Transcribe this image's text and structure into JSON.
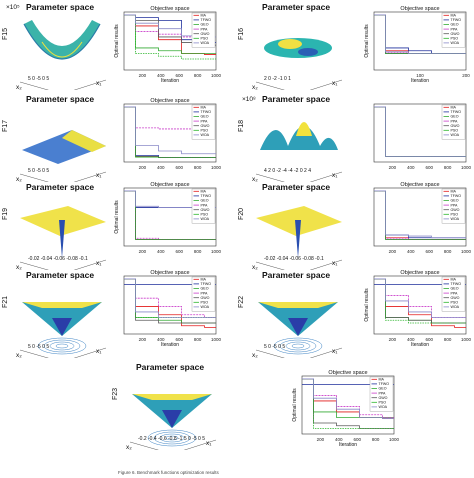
{
  "page": {
    "caption": "Figure 6. Benchmark functions optimization results"
  },
  "legend_items": [
    "MA",
    "TFWO",
    "GEO",
    "PPA",
    "GWO",
    "PSO",
    "WOA"
  ],
  "colors": {
    "MA": "#e21a1a",
    "TFWO": "#1e2f9c",
    "GEO": "#33aa33",
    "PPA": "#c93cc9",
    "GWO": "#5a5a5a",
    "PSO": "#2bb52b",
    "WOA": "#8a8ac8"
  },
  "panels": [
    {
      "fn": "F15",
      "title": "Parameter space",
      "x1": "x₁",
      "x2": "x₂",
      "ticks": [
        "5",
        "0",
        "-5",
        "0",
        "5"
      ],
      "exp": "×10⁵",
      "obj_title": "Objective space",
      "xlabel": "Iteration",
      "ylabel": "Optimal results",
      "xticks": [
        "200",
        "400",
        "600",
        "800",
        "1000"
      ]
    },
    {
      "fn": "F16",
      "title": "Parameter space",
      "x1": "x₁",
      "x2": "x₂",
      "ticks": [
        "2",
        "0",
        "-2",
        "-1",
        "0",
        "1"
      ],
      "exp": "",
      "obj_title": "Objective space",
      "xlabel": "Iteration",
      "ylabel": "Optimal results",
      "xticks": [
        "100",
        "200"
      ]
    },
    {
      "fn": "F17",
      "title": "Parameter space",
      "x1": "x₁",
      "x2": "x₂",
      "ticks": [
        "5",
        "0",
        "-5",
        "0",
        "5"
      ],
      "exp": "",
      "obj_title": "Objective space",
      "xlabel": "",
      "ylabel": "",
      "xticks": [
        "200",
        "400",
        "600",
        "800",
        "1000"
      ]
    },
    {
      "fn": "F18",
      "title": "Parameter space",
      "x1": "x₁",
      "x2": "x₂",
      "ticks": [
        "4",
        "2",
        "0",
        "-2",
        "-4",
        "-4",
        "-2",
        "0",
        "2",
        "4"
      ],
      "exp": "×10⁸",
      "obj_title": "",
      "xlabel": "",
      "ylabel": "",
      "xticks": [
        "200",
        "400",
        "600",
        "800",
        "1000"
      ]
    },
    {
      "fn": "F19",
      "title": "Parameter space",
      "x1": "x₁",
      "x2": "x₂",
      "ticks": [
        "-0.02",
        "-0.04",
        "-0.06",
        "-0.08",
        "-0.1"
      ],
      "exp": "",
      "obj_title": "Objective space",
      "xlabel": "",
      "ylabel": "Optimal results",
      "xticks": [
        "200",
        "400",
        "600",
        "800",
        "1000"
      ]
    },
    {
      "fn": "F20",
      "title": "Parameter space",
      "x1": "x₁",
      "x2": "x₂",
      "ticks": [
        "-0.02",
        "-0.04",
        "-0.06",
        "-0.08",
        "-0.1"
      ],
      "exp": "",
      "obj_title": "Objective space",
      "xlabel": "",
      "ylabel": "",
      "xticks": [
        "200",
        "400",
        "600",
        "800",
        "1000"
      ]
    },
    {
      "fn": "F21",
      "title": "Parameter space",
      "x1": "x₁",
      "x2": "x₂",
      "ticks": [
        "5",
        "0",
        "-5",
        "0",
        "5"
      ],
      "exp": "",
      "obj_title": "Objective space",
      "xlabel": "Iteration",
      "ylabel": "",
      "xticks": [
        "200",
        "400",
        "600",
        "800",
        "1000"
      ]
    },
    {
      "fn": "F22",
      "title": "Parameter space",
      "x1": "x₁",
      "x2": "x₂",
      "ticks": [
        "5",
        "0",
        "-5",
        "0",
        "5"
      ],
      "exp": "",
      "obj_title": "Objective space",
      "xlabel": "Iteration",
      "ylabel": "Optimal results",
      "xticks": [
        "200",
        "400",
        "600",
        "800",
        "1000"
      ]
    },
    {
      "fn": "F23",
      "title": "Parameter space",
      "x1": "x₁",
      "x2": "x₂",
      "ticks": [
        "-0.2",
        "-0.4",
        "-0.6",
        "-0.8",
        "-1",
        "5",
        "0",
        "-5",
        "0",
        "5"
      ],
      "exp": "",
      "obj_title": "Objective space",
      "xlabel": "Iteration",
      "ylabel": "Optimal results",
      "xticks": [
        "200",
        "400",
        "600",
        "800",
        "1000"
      ]
    }
  ],
  "chart_data": [
    {
      "type": "line",
      "title": "Objective space",
      "xlabel": "Iteration",
      "ylabel": "Optimal results",
      "xlim": [
        0,
        1000
      ],
      "series": [
        {
          "name": "MA",
          "values": [
            1.0,
            0.8,
            0.55,
            0.3,
            0.28
          ]
        },
        {
          "name": "TFWO",
          "values": [
            1.0,
            0.95,
            0.9,
            0.55,
            0.5
          ]
        },
        {
          "name": "GEO",
          "values": [
            1.0,
            0.4,
            0.35,
            0.3,
            0.3
          ]
        },
        {
          "name": "PPA",
          "values": [
            1.0,
            0.7,
            0.65,
            0.6,
            0.6
          ]
        },
        {
          "name": "GWO",
          "values": [
            1.0,
            0.9,
            0.6,
            0.5,
            0.45
          ]
        },
        {
          "name": "PSO",
          "values": [
            1.0,
            0.3,
            0.25,
            0.2,
            0.2
          ]
        },
        {
          "name": "WOA",
          "values": [
            1.0,
            0.85,
            0.75,
            0.62,
            0.6
          ]
        }
      ]
    },
    {
      "type": "line",
      "title": "Objective space",
      "xlabel": "Iteration",
      "ylabel": "Optimal results",
      "xlim": [
        0,
        200
      ],
      "series": [
        {
          "name": "MA",
          "values": [
            1.0,
            0.35,
            0.3,
            0.3,
            0.3
          ]
        },
        {
          "name": "TFWO",
          "values": [
            1.0,
            0.4,
            0.35,
            0.3,
            0.3
          ]
        },
        {
          "name": "GEO",
          "values": [
            1.0,
            0.3,
            0.3,
            0.3,
            0.3
          ]
        },
        {
          "name": "PPA",
          "values": [
            1.0,
            0.32,
            0.3,
            0.3,
            0.3
          ]
        },
        {
          "name": "GWO",
          "values": [
            1.0,
            0.3,
            0.3,
            0.3,
            0.3
          ]
        },
        {
          "name": "PSO",
          "values": [
            1.0,
            0.3,
            0.3,
            0.3,
            0.3
          ]
        },
        {
          "name": "WOA",
          "values": [
            1.0,
            0.33,
            0.3,
            0.3,
            0.3
          ]
        }
      ]
    },
    {
      "type": "line",
      "title": "Objective space",
      "xlim": [
        0,
        1000
      ],
      "series": [
        {
          "name": "MA",
          "values": [
            1.0,
            0.1,
            0.08,
            0.08,
            0.08
          ]
        },
        {
          "name": "TFWO",
          "values": [
            1.0,
            0.12,
            0.08,
            0.08,
            0.08
          ]
        },
        {
          "name": "GEO",
          "values": [
            1.0,
            0.09,
            0.08,
            0.08,
            0.08
          ]
        },
        {
          "name": "PPA",
          "values": [
            1.0,
            0.62,
            0.6,
            0.6,
            0.6
          ]
        },
        {
          "name": "GWO",
          "values": [
            1.0,
            0.1,
            0.08,
            0.08,
            0.08
          ]
        },
        {
          "name": "PSO",
          "values": [
            1.0,
            0.09,
            0.08,
            0.08,
            0.08
          ]
        },
        {
          "name": "WOA",
          "values": [
            1.0,
            0.3,
            0.2,
            0.15,
            0.15
          ]
        }
      ]
    },
    {
      "type": "line",
      "xlim": [
        0,
        1000
      ],
      "series": [
        {
          "name": "MA",
          "values": [
            1.0,
            0.1,
            0.1,
            0.1,
            0.1
          ]
        },
        {
          "name": "TFWO",
          "values": [
            1.0,
            0.1,
            0.1,
            0.1,
            0.1
          ]
        },
        {
          "name": "GEO",
          "values": [
            1.0,
            0.1,
            0.1,
            0.1,
            0.1
          ]
        },
        {
          "name": "PPA",
          "values": [
            1.0,
            0.1,
            0.1,
            0.1,
            0.1
          ]
        },
        {
          "name": "GWO",
          "values": [
            1.0,
            0.1,
            0.1,
            0.1,
            0.1
          ]
        },
        {
          "name": "PSO",
          "values": [
            1.0,
            0.1,
            0.1,
            0.1,
            0.1
          ]
        },
        {
          "name": "WOA",
          "values": [
            1.0,
            0.1,
            0.1,
            0.1,
            0.1
          ]
        }
      ]
    },
    {
      "type": "line",
      "title": "Objective space",
      "ylabel": "Optimal results",
      "xlim": [
        0,
        1000
      ],
      "series": [
        {
          "name": "MA",
          "values": [
            1.0,
            0.12,
            0.12,
            0.12,
            0.12
          ]
        },
        {
          "name": "TFWO",
          "values": [
            1.0,
            0.7,
            0.7,
            0.7,
            0.7
          ]
        },
        {
          "name": "GEO",
          "values": [
            1.0,
            0.12,
            0.12,
            0.12,
            0.12
          ]
        },
        {
          "name": "PPA",
          "values": [
            1.0,
            0.14,
            0.12,
            0.12,
            0.12
          ]
        },
        {
          "name": "GWO",
          "values": [
            1.0,
            0.12,
            0.12,
            0.12,
            0.12
          ]
        },
        {
          "name": "PSO",
          "values": [
            1.0,
            0.12,
            0.12,
            0.12,
            0.12
          ]
        },
        {
          "name": "WOA",
          "values": [
            1.0,
            0.72,
            0.7,
            0.7,
            0.7
          ]
        }
      ]
    },
    {
      "type": "line",
      "title": "Objective space",
      "xlim": [
        0,
        1000
      ],
      "series": [
        {
          "name": "MA",
          "values": [
            1.0,
            0.15,
            0.12,
            0.12,
            0.12
          ]
        },
        {
          "name": "TFWO",
          "values": [
            1.0,
            0.2,
            0.15,
            0.15,
            0.15
          ]
        },
        {
          "name": "GEO",
          "values": [
            1.0,
            0.12,
            0.12,
            0.12,
            0.12
          ]
        },
        {
          "name": "PPA",
          "values": [
            1.0,
            0.14,
            0.12,
            0.12,
            0.12
          ]
        },
        {
          "name": "GWO",
          "values": [
            1.0,
            0.12,
            0.12,
            0.12,
            0.12
          ]
        },
        {
          "name": "PSO",
          "values": [
            1.0,
            0.12,
            0.12,
            0.12,
            0.12
          ]
        },
        {
          "name": "WOA",
          "values": [
            1.0,
            0.2,
            0.18,
            0.15,
            0.15
          ]
        }
      ]
    },
    {
      "type": "line",
      "title": "Objective space",
      "xlabel": "Iteration",
      "xlim": [
        0,
        1000
      ],
      "series": [
        {
          "name": "MA",
          "values": [
            1.0,
            0.5,
            0.35,
            0.15,
            0.12
          ]
        },
        {
          "name": "TFWO",
          "values": [
            0.9,
            0.9,
            0.9,
            0.9,
            0.9
          ]
        },
        {
          "name": "GEO",
          "values": [
            1.0,
            0.3,
            0.25,
            0.2,
            0.2
          ]
        },
        {
          "name": "PPA",
          "values": [
            1.0,
            0.65,
            0.5,
            0.35,
            0.3
          ]
        },
        {
          "name": "GWO",
          "values": [
            1.0,
            0.25,
            0.2,
            0.2,
            0.2
          ]
        },
        {
          "name": "PSO",
          "values": [
            1.0,
            0.3,
            0.3,
            0.3,
            0.3
          ]
        },
        {
          "name": "WOA",
          "values": [
            1.0,
            0.4,
            0.3,
            0.3,
            0.3
          ]
        }
      ]
    },
    {
      "type": "line",
      "title": "Objective space",
      "xlabel": "Iteration",
      "ylabel": "Optimal results",
      "xlim": [
        0,
        1000
      ],
      "series": [
        {
          "name": "MA",
          "values": [
            1.0,
            0.5,
            0.35,
            0.15,
            0.12
          ]
        },
        {
          "name": "TFWO",
          "values": [
            0.9,
            0.9,
            0.9,
            0.9,
            0.9
          ]
        },
        {
          "name": "GEO",
          "values": [
            1.0,
            0.3,
            0.25,
            0.2,
            0.2
          ]
        },
        {
          "name": "PPA",
          "values": [
            1.0,
            0.7,
            0.5,
            0.3,
            0.3
          ]
        },
        {
          "name": "GWO",
          "values": [
            1.0,
            0.3,
            0.25,
            0.2,
            0.2
          ]
        },
        {
          "name": "PSO",
          "values": [
            1.0,
            0.25,
            0.2,
            0.2,
            0.2
          ]
        },
        {
          "name": "WOA",
          "values": [
            1.0,
            0.6,
            0.4,
            0.3,
            0.3
          ]
        }
      ]
    },
    {
      "type": "line",
      "title": "Objective space",
      "xlabel": "Iteration",
      "ylabel": "Optimal results",
      "xlim": [
        0,
        1000
      ],
      "series": [
        {
          "name": "MA",
          "values": [
            1.0,
            0.6,
            0.4,
            0.3,
            0.28
          ]
        },
        {
          "name": "TFWO",
          "values": [
            0.9,
            0.9,
            0.9,
            0.9,
            0.9
          ]
        },
        {
          "name": "GEO",
          "values": [
            1.0,
            0.4,
            0.3,
            0.3,
            0.3
          ]
        },
        {
          "name": "PPA",
          "values": [
            1.0,
            0.7,
            0.5,
            0.35,
            0.3
          ]
        },
        {
          "name": "GWO",
          "values": [
            1.0,
            0.2,
            0.15,
            0.1,
            0.1
          ]
        },
        {
          "name": "PSO",
          "values": [
            1.0,
            0.1,
            0.1,
            0.1,
            0.1
          ]
        },
        {
          "name": "WOA",
          "values": [
            1.0,
            0.65,
            0.45,
            0.3,
            0.28
          ]
        }
      ]
    }
  ]
}
